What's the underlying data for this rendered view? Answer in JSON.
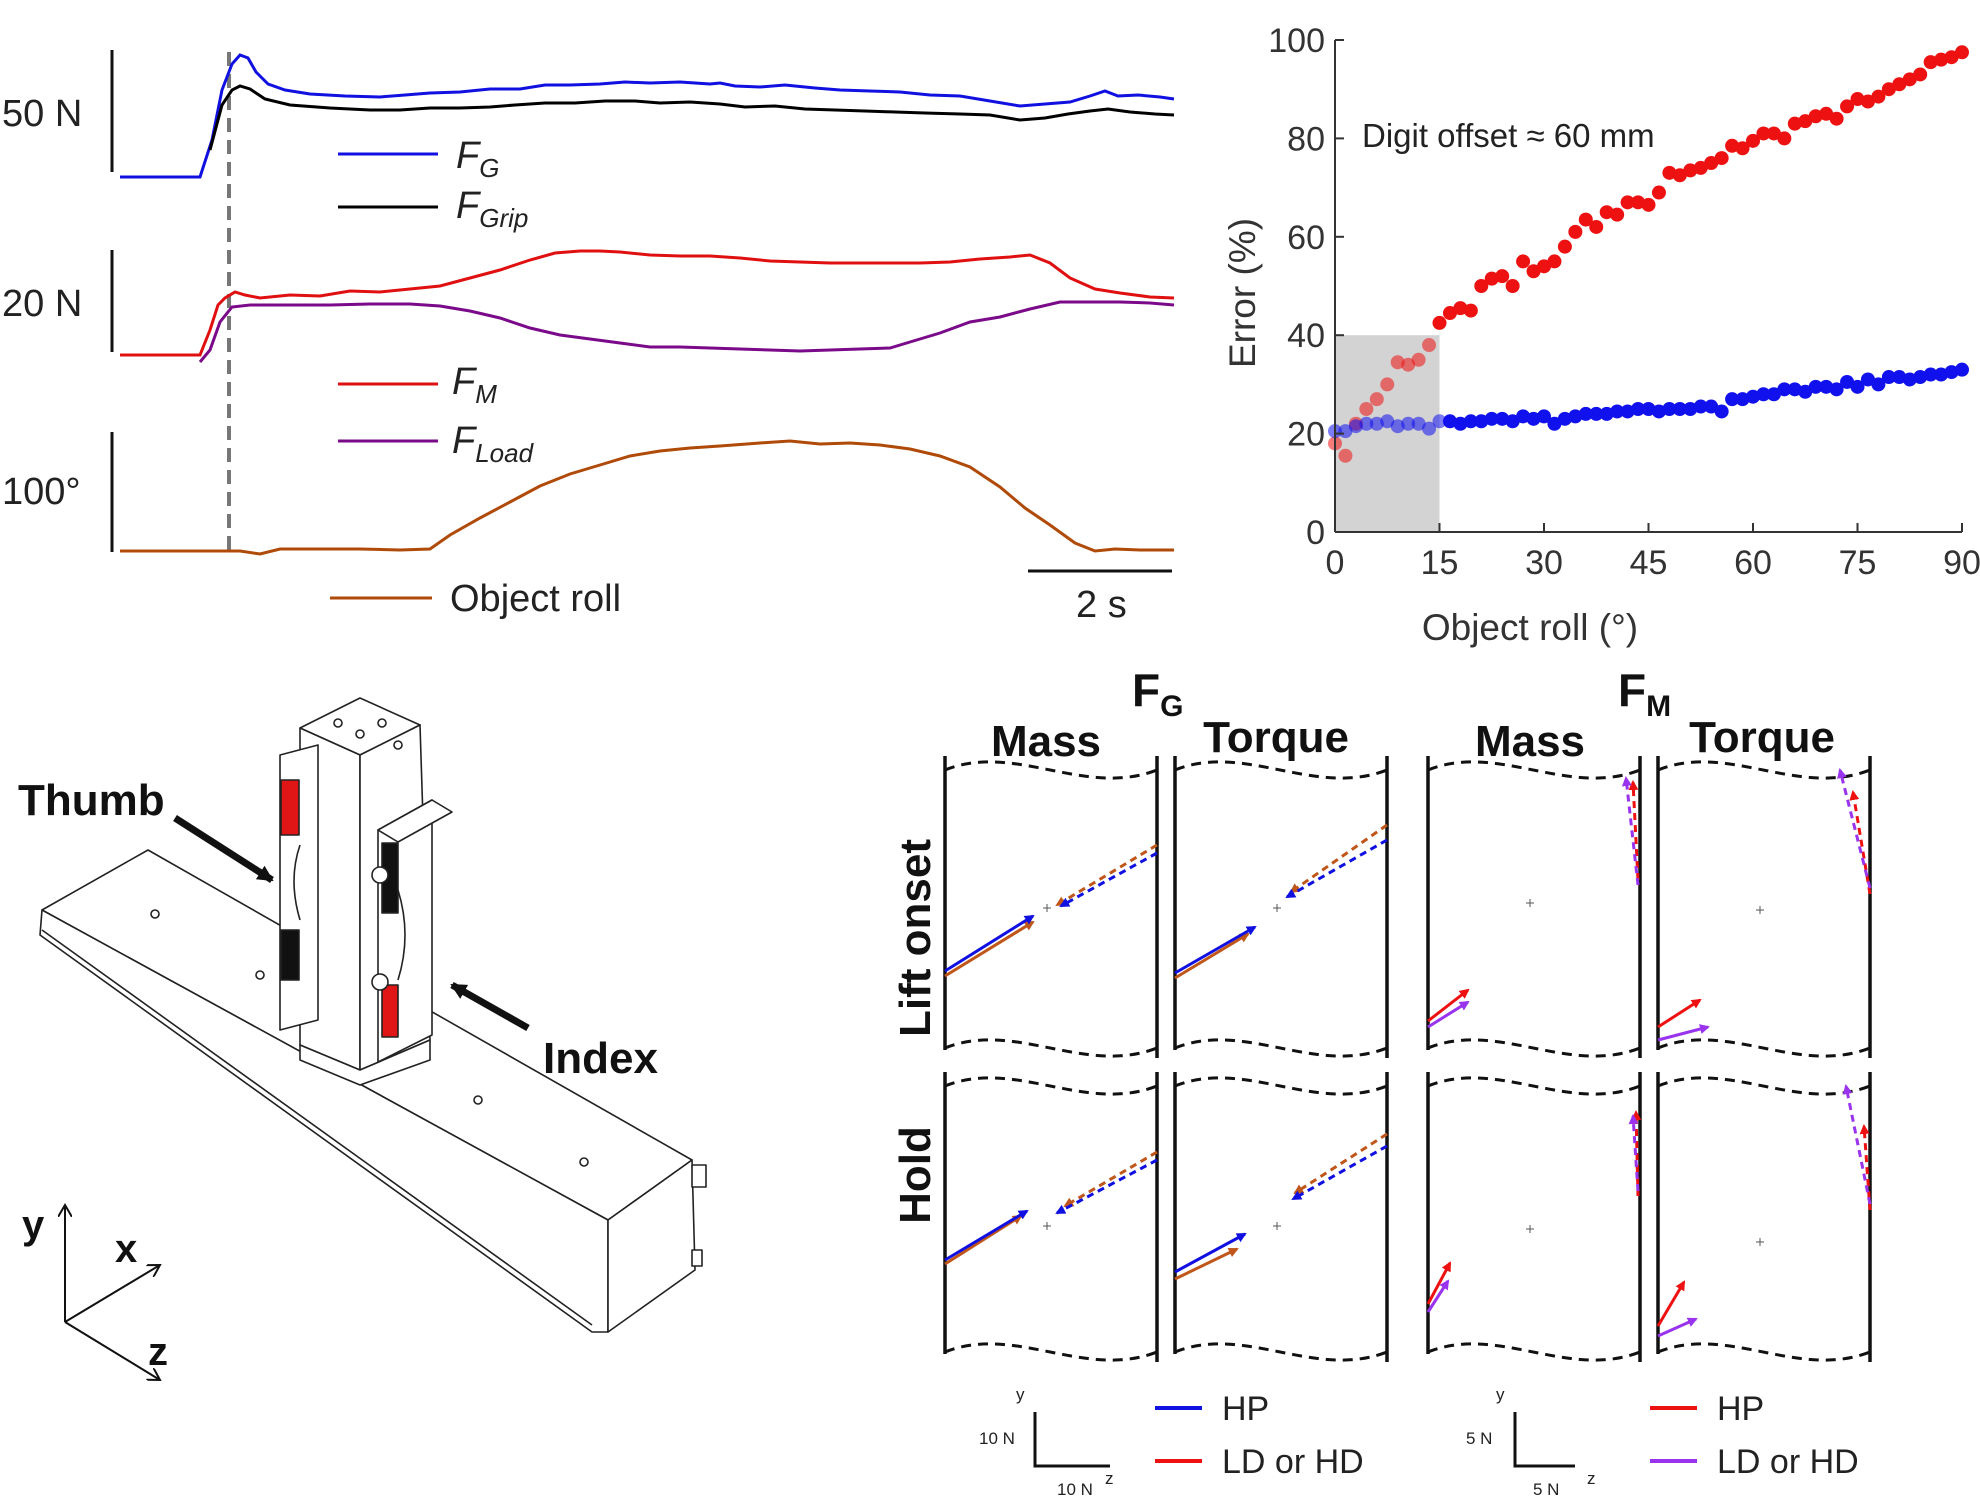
{
  "trace_panel": {
    "scalebar_force1": "50 N",
    "scalebar_force2": "20 N",
    "scalebar_angle": "100°",
    "scalebar_time": "2 s",
    "legend": {
      "fg": {
        "main": "F",
        "sub": "G"
      },
      "fgrip": {
        "main": "F",
        "sub": "Grip"
      },
      "fm": {
        "main": "F",
        "sub": "M"
      },
      "fload": {
        "main": "F",
        "sub": "Load"
      },
      "roll": "Object roll"
    },
    "colors": {
      "fg": "#1010e0",
      "fgrip": "#000000",
      "fm": "#e01010",
      "fload": "#7a0a8a",
      "roll": "#b04a08"
    }
  },
  "chart_data": [
    {
      "type": "scatter",
      "annotation": "Digit offset ≈ 60 mm",
      "xlabel": "Object roll (°)",
      "ylabel": "Error (%)",
      "xlim": [
        0,
        90
      ],
      "ylim": [
        0,
        100
      ],
      "xticks": [
        0,
        15,
        30,
        45,
        60,
        75,
        90
      ],
      "yticks": [
        0,
        20,
        40,
        60,
        80,
        100
      ],
      "shaded_region": {
        "x": [
          0,
          15
        ],
        "y": [
          0,
          40
        ]
      },
      "series": [
        {
          "color": "#ee1111",
          "x": [
            0,
            1.5,
            3,
            4.5,
            6,
            7.5,
            9,
            10.5,
            12,
            13.5,
            15,
            16.5,
            18,
            19.5,
            21,
            22.5,
            24,
            25.5,
            27,
            28.5,
            30,
            31.5,
            33,
            34.5,
            36,
            37.5,
            39,
            40.5,
            42,
            43.5,
            45,
            46.5,
            48,
            49.5,
            51,
            52.5,
            54,
            55.5,
            57,
            58.5,
            60,
            61.5,
            63,
            64.5,
            66,
            67.5,
            69,
            70.5,
            72,
            73.5,
            75,
            76.5,
            78,
            79.5,
            81,
            82.5,
            84,
            85.5,
            87,
            88.5,
            90
          ],
          "y": [
            18,
            15.5,
            22,
            25,
            27,
            30,
            34.5,
            34,
            35,
            38,
            42.5,
            44.5,
            45.5,
            45,
            50,
            51.5,
            52,
            50,
            55,
            53,
            54,
            55,
            58,
            61,
            63.5,
            62,
            65,
            64.5,
            67,
            67,
            66.5,
            69,
            73,
            72.5,
            73.5,
            74,
            75,
            76,
            78.5,
            78,
            79.5,
            81,
            81,
            80,
            83,
            83.5,
            84.5,
            85,
            84,
            86.5,
            88,
            87.5,
            88.5,
            90,
            91,
            92,
            93,
            95.5,
            96,
            96.5,
            97.5
          ]
        },
        {
          "color": "#1111ee",
          "x": [
            0,
            1.5,
            3,
            4.5,
            6,
            7.5,
            9,
            10.5,
            12,
            13.5,
            15,
            16.5,
            18,
            19.5,
            21,
            22.5,
            24,
            25.5,
            27,
            28.5,
            30,
            31.5,
            33,
            34.5,
            36,
            37.5,
            39,
            40.5,
            42,
            43.5,
            45,
            46.5,
            48,
            49.5,
            51,
            52.5,
            54,
            55.5,
            57,
            58.5,
            60,
            61.5,
            63,
            64.5,
            66,
            67.5,
            69,
            70.5,
            72,
            73.5,
            75,
            76.5,
            78,
            79.5,
            81,
            82.5,
            84,
            85.5,
            87,
            88.5,
            90
          ],
          "y": [
            20.5,
            20.5,
            21.5,
            22,
            22,
            22.5,
            21.5,
            22,
            22,
            21,
            22.5,
            22.5,
            22,
            22.5,
            22.5,
            23,
            23,
            22.5,
            23.5,
            23,
            23.5,
            22,
            23,
            23.5,
            24,
            24,
            24,
            24.5,
            24.5,
            25,
            25,
            24.5,
            25,
            25,
            25,
            25.5,
            25.5,
            24.5,
            27,
            27,
            27.5,
            28,
            28,
            29,
            29,
            28.5,
            29.5,
            29.5,
            29,
            30.5,
            29.5,
            31,
            30,
            31.5,
            31.5,
            31,
            31.5,
            32,
            32,
            32.5,
            33
          ]
        }
      ]
    }
  ],
  "device_panel": {
    "thumb_label": "Thumb",
    "index_label": "Index",
    "axis_y": "y",
    "axis_x": "x",
    "axis_z": "z"
  },
  "vector_panel": {
    "group_fg": {
      "main": "F",
      "sub": "G"
    },
    "group_fm": {
      "main": "F",
      "sub": "M"
    },
    "col_mass_1": "Mass",
    "col_torque_1": "Torque",
    "col_mass_2": "Mass",
    "col_torque_2": "Torque",
    "row_lift": "Lift onset",
    "row_hold": "Hold",
    "scale_left": {
      "y": "y",
      "z": "z",
      "v": "10 N",
      "h": "10 N"
    },
    "scale_right": {
      "y": "y",
      "z": "z",
      "v": "5 N",
      "h": "5 N"
    },
    "legend_left": [
      {
        "label": "HP",
        "color": "#1010e0"
      },
      {
        "label": "LD or HD",
        "color": "#ee1111"
      }
    ],
    "legend_right": [
      {
        "label": "HP",
        "color": "#ee1111"
      },
      {
        "label": "LD or HD",
        "color": "#9933ee"
      }
    ]
  }
}
